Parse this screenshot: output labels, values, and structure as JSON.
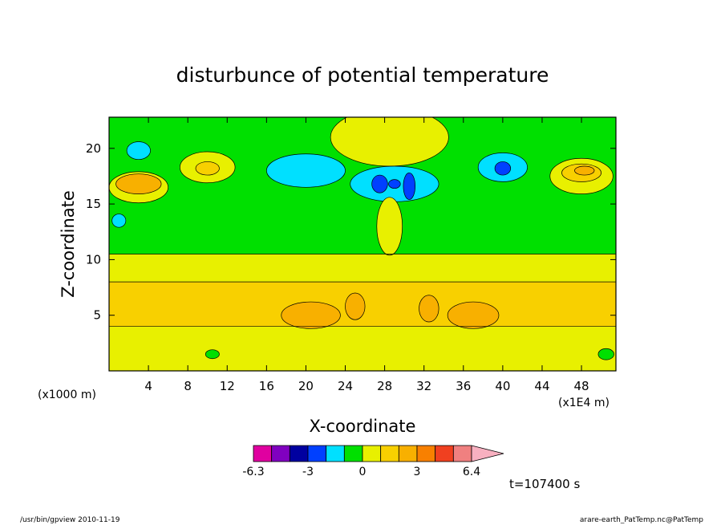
{
  "chart_data": {
    "type": "heatmap",
    "title": "disturbunce of potential temperature",
    "xlabel": "X-coordinate",
    "ylabel": "Z-coordinate",
    "x_unit_left": "(x1000 m)",
    "x_unit_right": "(x1E4 m)",
    "xlim": [
      0,
      51.5
    ],
    "ylim": [
      0,
      22.8
    ],
    "x_ticks": [
      4,
      8,
      12,
      16,
      20,
      24,
      28,
      32,
      36,
      40,
      44,
      48
    ],
    "y_ticks": [
      5,
      10,
      15,
      20
    ],
    "color_levels": [
      -6.3,
      -5.2,
      -4.1,
      -3,
      -1.9,
      -0.8,
      0,
      1,
      2,
      3,
      4,
      5,
      6.4
    ],
    "colorbar_labels": [
      "-6.3",
      "-3",
      "0",
      "3",
      "6.4"
    ],
    "colorbar_label_values": [
      -6.3,
      -3,
      0,
      3,
      6.4
    ],
    "colors": [
      "#e000a0",
      "#8000c0",
      "#0000a0",
      "#0040ff",
      "#00e0ff",
      "#00e000",
      "#e8f000",
      "#f8d000",
      "#f8b000",
      "#f88000",
      "#f04020",
      "#f08080",
      "#f8b0c0"
    ],
    "time_label": "t=107400 s",
    "features": [
      {
        "x0": 0,
        "x1": 51.5,
        "z0": 0,
        "z1": 4,
        "level": 1
      },
      {
        "x0": 0,
        "x1": 51.5,
        "z0": 4,
        "z1": 8,
        "level": 2
      },
      {
        "x0": 0,
        "x1": 51.5,
        "z0": 8,
        "z1": 10.5,
        "level": 1
      },
      {
        "x0": 0,
        "x1": 51.5,
        "z0": 10.5,
        "z1": 22.8,
        "level": 0
      },
      {
        "cx": 20.5,
        "cz": 5,
        "rx": 3,
        "rz": 1.2,
        "level": 3
      },
      {
        "cx": 37,
        "cz": 5,
        "rx": 2.6,
        "rz": 1.2,
        "level": 3
      },
      {
        "cx": 25,
        "cz": 5.8,
        "rx": 1,
        "rz": 1.2,
        "level": 3
      },
      {
        "cx": 32.5,
        "cz": 5.6,
        "rx": 1,
        "rz": 1.2,
        "level": 3
      },
      {
        "cx": 3,
        "cz": 16.5,
        "rx": 3,
        "rz": 1.4,
        "level": 1
      },
      {
        "cx": 3,
        "cz": 16.8,
        "rx": 2.3,
        "rz": 0.9,
        "level": 3
      },
      {
        "cx": 48,
        "cz": 17.5,
        "rx": 3.2,
        "rz": 1.6,
        "level": 1
      },
      {
        "cx": 48,
        "cz": 17.8,
        "rx": 2,
        "rz": 0.8,
        "level": 2
      },
      {
        "cx": 48.3,
        "cz": 18,
        "rx": 1,
        "rz": 0.4,
        "level": 3
      },
      {
        "cx": 10,
        "cz": 18.3,
        "rx": 2.8,
        "rz": 1.4,
        "level": 1
      },
      {
        "cx": 10,
        "cz": 18.2,
        "rx": 1.2,
        "rz": 0.6,
        "level": 2
      },
      {
        "cx": 28.5,
        "cz": 21,
        "rx": 6,
        "rz": 2.6,
        "level": 1
      },
      {
        "cx": 29,
        "cz": 16.8,
        "rx": 4.5,
        "rz": 1.6,
        "level": -1
      },
      {
        "cx": 20,
        "cz": 18,
        "rx": 4,
        "rz": 1.5,
        "level": -1
      },
      {
        "cx": 40,
        "cz": 18.3,
        "rx": 2.5,
        "rz": 1.3,
        "level": -1
      },
      {
        "cx": 3,
        "cz": 19.8,
        "rx": 1.2,
        "rz": 0.8,
        "level": -1
      },
      {
        "cx": 1,
        "cz": 13.5,
        "rx": 0.7,
        "rz": 0.6,
        "level": -1
      },
      {
        "cx": 27.5,
        "cz": 16.8,
        "rx": 0.8,
        "rz": 0.8,
        "level": -2
      },
      {
        "cx": 30.5,
        "cz": 16.6,
        "rx": 0.6,
        "rz": 1.2,
        "level": -2
      },
      {
        "cx": 29,
        "cz": 16.8,
        "rx": 0.6,
        "rz": 0.4,
        "level": -2
      },
      {
        "cx": 40,
        "cz": 18.2,
        "rx": 0.8,
        "rz": 0.6,
        "level": -2
      },
      {
        "cx": 28.5,
        "cz": 13,
        "rx": 1.3,
        "rz": 2.6,
        "level": 1
      },
      {
        "cx": 10.5,
        "cz": 1.5,
        "rx": 0.7,
        "rz": 0.4,
        "level": 0
      },
      {
        "cx": 50.5,
        "cz": 1.5,
        "rx": 0.8,
        "rz": 0.5,
        "level": 0
      }
    ]
  },
  "footer": {
    "left": "/usr/bin/gpview  2010-11-19",
    "right": "arare-earth_PatTemp.nc@PatTemp"
  }
}
